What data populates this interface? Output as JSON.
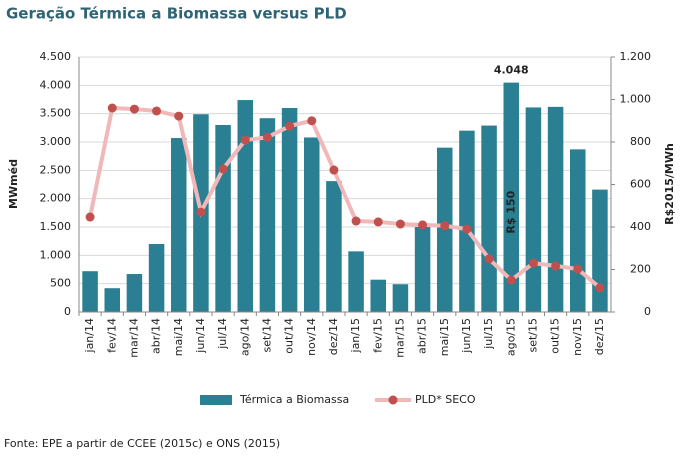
{
  "chart_data": {
    "type": "bar-line",
    "title": "Geração Térmica a Biomassa versus PLD",
    "y_label": "MWméd",
    "y2_label": "R$2015/MWh",
    "source": "Fonte: EPE a partir de CCEE (2015c) e ONS (2015)",
    "categories": [
      "jan/14",
      "fev/14",
      "mar/14",
      "abr/14",
      "mai/14",
      "jun/14",
      "jul/14",
      "ago/14",
      "set/14",
      "out/14",
      "nov/14",
      "dez/14",
      "jan/15",
      "fev/15",
      "mar/15",
      "abr/15",
      "mai/15",
      "jun/15",
      "jul/15",
      "ago/15",
      "set/15",
      "out/15",
      "nov/15",
      "dez/15"
    ],
    "series": [
      {
        "name": "Térmica a Biomassa",
        "color": "#2b7f92",
        "type": "bar",
        "values": [
          720,
          420,
          670,
          1200,
          3070,
          3490,
          3300,
          3740,
          3420,
          3600,
          3080,
          2310,
          1070,
          570,
          490,
          1500,
          2900,
          3200,
          3290,
          4048,
          3610,
          3620,
          2870,
          2160
        ],
        "value_labels": [
          null,
          null,
          null,
          null,
          null,
          null,
          null,
          null,
          null,
          null,
          null,
          null,
          null,
          null,
          null,
          null,
          null,
          null,
          null,
          "4.048",
          null,
          null,
          null,
          null
        ]
      },
      {
        "name": "PLD* SECO",
        "color": "#f0b8b8",
        "marker_color": "#c0504d",
        "type": "line",
        "axis": "y2",
        "values": [
          447,
          960,
          955,
          946,
          922,
          470,
          673,
          809,
          822,
          875,
          900,
          668,
          428,
          424,
          414,
          410,
          406,
          390,
          250,
          150,
          230,
          217,
          202,
          114
        ],
        "value_labels": [
          null,
          null,
          null,
          null,
          null,
          null,
          null,
          null,
          null,
          null,
          null,
          null,
          null,
          null,
          null,
          null,
          null,
          null,
          null,
          "R$ 150",
          null,
          null,
          null,
          null
        ]
      }
    ],
    "ylim": [
      0,
      4500
    ],
    "yticks": [
      {
        "value": 0,
        "label": "0"
      },
      {
        "value": 500,
        "label": "500"
      },
      {
        "value": 1000,
        "label": "1.000"
      },
      {
        "value": 1500,
        "label": "1.500"
      },
      {
        "value": 2000,
        "label": "2.000"
      },
      {
        "value": 2500,
        "label": "2.500"
      },
      {
        "value": 3000,
        "label": "3.000"
      },
      {
        "value": 3500,
        "label": "3.500"
      },
      {
        "value": 4000,
        "label": "4.000"
      },
      {
        "value": 4500,
        "label": "4.500"
      }
    ],
    "y2lim": [
      0,
      1200
    ],
    "y2ticks": [
      {
        "value": 0,
        "label": "0"
      },
      {
        "value": 200,
        "label": "200"
      },
      {
        "value": 400,
        "label": "400"
      },
      {
        "value": 600,
        "label": "600"
      },
      {
        "value": 800,
        "label": "800"
      },
      {
        "value": 1000,
        "label": "1.000"
      },
      {
        "value": 1200,
        "label": "1.200"
      }
    ],
    "grid": true,
    "legend": "bottom"
  }
}
